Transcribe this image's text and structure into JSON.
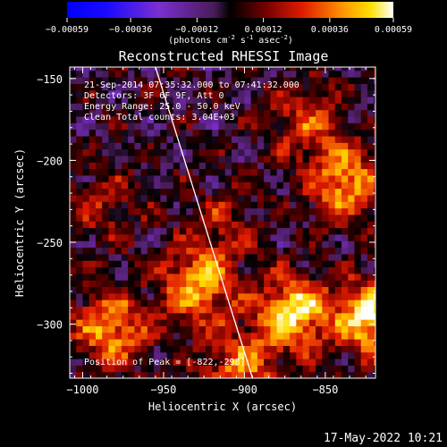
{
  "chart_data": {
    "type": "heatmap",
    "title": "Reconstructed RHESSI Image",
    "xlabel": "Heliocentric X (arcsec)",
    "ylabel": "Heliocentric Y (arcsec)",
    "xlim": [
      -1008,
      -819
    ],
    "ylim": [
      -333,
      -143
    ],
    "x_ticks": [
      -1000,
      -950,
      -900,
      -850
    ],
    "y_ticks": [
      -300,
      -250,
      -200,
      -150
    ],
    "colorbar": {
      "ticks": [
        -0.00059,
        -0.00036,
        -0.00012,
        0.00012,
        0.00036,
        0.00059
      ],
      "tick_labels": [
        "-0.00059",
        "-0.00036",
        "-0.00012",
        "0.00012",
        "0.00036",
        "0.00059"
      ],
      "range": [
        -0.00059,
        0.00059
      ],
      "units_text": "(photons cm",
      "units_exp1": "-2",
      "units_mid": " s",
      "units_exp2": "-1",
      "units_mid2": " asec",
      "units_exp3": "-2",
      "units_end": ")"
    },
    "annotations": [
      "21-Sep-2014 07:35:32.000 to 07:41:32.000",
      "Detectors: 3F 6F 9F, Att 0",
      "Energy Range: 25.0 - 50.0 keV",
      "Clean     Total counts: 3.04E+03"
    ],
    "peak_text": "Position of Peak = [-822,-298]",
    "limb_line": [
      [
        -955,
        -143
      ],
      [
        -895,
        -333
      ]
    ],
    "sources": [
      {
        "x": -930,
        "y": -278,
        "value": 0.00048
      },
      {
        "x": -872,
        "y": -295,
        "value": 0.00055
      },
      {
        "x": -822,
        "y": -298,
        "value": 0.00059
      },
      {
        "x": -985,
        "y": -305,
        "value": 0.00045
      },
      {
        "x": -840,
        "y": -215,
        "value": 0.00046
      },
      {
        "x": -865,
        "y": -178,
        "value": 0.00028
      },
      {
        "x": -988,
        "y": -230,
        "value": 0.0002
      },
      {
        "x": -905,
        "y": -330,
        "value": 0.00038
      },
      {
        "x": -915,
        "y": -240,
        "value": 0.00018
      }
    ],
    "background_value": -2e-05,
    "grid": false
  },
  "timestamp": "17-May-2022 10:21"
}
